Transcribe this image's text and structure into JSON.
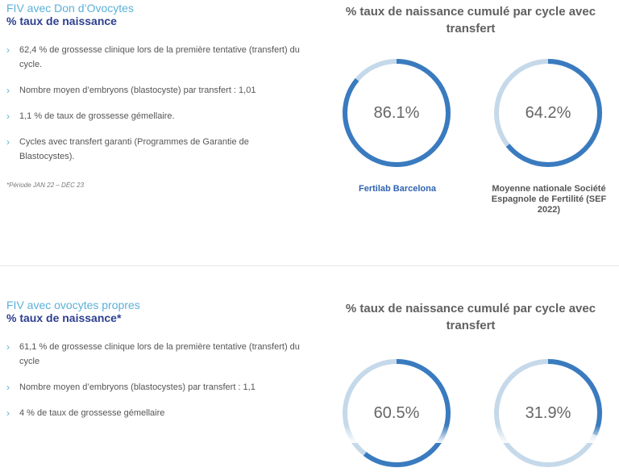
{
  "section1": {
    "kicker": "FIV avec Don d’Ovocytes",
    "subtitle": "% taux de naissance",
    "bullets": [
      "62,4 % de grossesse clinique lors de la première tentative (transfert) du cycle.",
      "Nombre moyen d’embryons (blastocyste) par transfert : 1,01",
      "1,1 % de taux de grossesse gémellaire.",
      "Cycles avec transfert garanti (Programmes de Garantie de Blastocystes)."
    ],
    "note": "*Période JAN 22 – DÉC 23",
    "chart_title": "% taux de naissance cumulé par cycle avec transfert",
    "donuts": [
      {
        "label": "86.1%",
        "value": 86.1,
        "caption": "Fertilab Barcelona"
      },
      {
        "label": "64.2%",
        "value": 64.2,
        "caption": "Moyenne nationale Société Espagnole de Fertilité (SEF 2022)"
      }
    ]
  },
  "section2": {
    "kicker": "FIV avec ovocytes propres",
    "subtitle": "% taux de naissance*",
    "bullets": [
      "61,1 % de grossesse clinique lors de la première tentative (transfert) du cycle",
      "Nombre moyen d’embryons (blastocystes) par transfert : 1,1",
      "4 % de taux de grossesse gémellaire"
    ],
    "chart_title": "% taux de naissance cumulé par cycle avec transfert",
    "donuts": [
      {
        "label": "60.5%",
        "value": 60.5
      },
      {
        "label": "31.9%",
        "value": 31.9
      }
    ]
  },
  "colors": {
    "ring_fill": "#3a7bbf",
    "ring_track": "#c5d9ea",
    "accent": "#5bb0d9",
    "heading": "#2d3f8f"
  }
}
